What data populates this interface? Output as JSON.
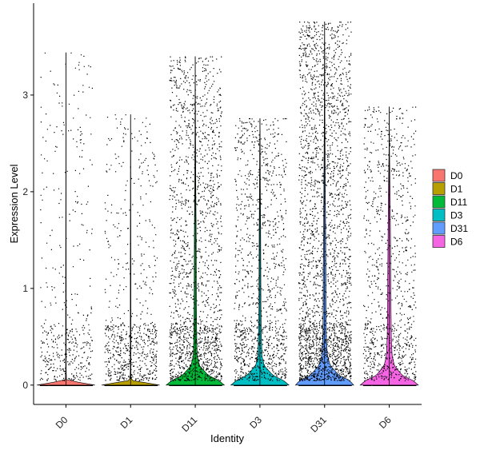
{
  "chart_data": {
    "type": "violin",
    "xlabel": "Identity",
    "ylabel": "Expression Level",
    "ylim": [
      -0.2,
      3.95
    ],
    "yticks": [
      0,
      1,
      2,
      3
    ],
    "grid": false,
    "legend_position": "right",
    "point_color": "#000000",
    "categories": [
      "D0",
      "D1",
      "D11",
      "D3",
      "D31",
      "D6"
    ],
    "colors": [
      "#F8766D",
      "#B79F00",
      "#00BA38",
      "#00BFC4",
      "#619CFF",
      "#F564E3"
    ],
    "series": [
      {
        "name": "D0",
        "max": 3.44,
        "n_points": 700,
        "zero_share": 0.9,
        "density_y": [
          0.0,
          0.05,
          0.15,
          0.3,
          0.5,
          1.0,
          2.0,
          3.44
        ],
        "density_w": [
          1.0,
          0.02,
          0.01,
          0.01,
          0.01,
          0.01,
          0.005,
          0.0
        ]
      },
      {
        "name": "D1",
        "max": 2.8,
        "n_points": 1100,
        "zero_share": 0.9,
        "density_y": [
          0.0,
          0.05,
          0.15,
          0.3,
          0.5,
          1.0,
          2.0,
          2.8
        ],
        "density_w": [
          1.0,
          0.02,
          0.01,
          0.01,
          0.01,
          0.01,
          0.005,
          0.0
        ]
      },
      {
        "name": "D11",
        "max": 3.4,
        "n_points": 2200,
        "zero_share": 0.5,
        "density_y": [
          0.0,
          0.05,
          0.1,
          0.2,
          0.3,
          0.5,
          0.8,
          1.2,
          1.6,
          2.0,
          2.6,
          3.4
        ],
        "density_w": [
          1.0,
          0.8,
          0.45,
          0.15,
          0.07,
          0.05,
          0.04,
          0.035,
          0.03,
          0.02,
          0.01,
          0.0
        ]
      },
      {
        "name": "D3",
        "max": 2.76,
        "n_points": 1500,
        "zero_share": 0.5,
        "density_y": [
          0.0,
          0.05,
          0.1,
          0.2,
          0.3,
          0.5,
          0.8,
          1.2,
          1.6,
          2.0,
          2.4,
          2.76
        ],
        "density_w": [
          1.0,
          0.8,
          0.45,
          0.15,
          0.07,
          0.05,
          0.035,
          0.03,
          0.025,
          0.015,
          0.01,
          0.0
        ]
      },
      {
        "name": "D31",
        "max": 3.76,
        "n_points": 4200,
        "zero_share": 0.45,
        "density_y": [
          0.0,
          0.05,
          0.1,
          0.2,
          0.3,
          0.5,
          0.8,
          1.2,
          1.6,
          2.0,
          2.8,
          3.76
        ],
        "density_w": [
          1.0,
          0.85,
          0.5,
          0.2,
          0.1,
          0.06,
          0.05,
          0.045,
          0.035,
          0.025,
          0.01,
          0.0
        ]
      },
      {
        "name": "D6",
        "max": 2.88,
        "n_points": 1200,
        "zero_share": 0.5,
        "density_y": [
          0.0,
          0.05,
          0.1,
          0.2,
          0.3,
          0.5,
          0.8,
          1.2,
          1.6,
          2.0,
          2.4,
          2.88
        ],
        "density_w": [
          1.0,
          0.8,
          0.45,
          0.18,
          0.1,
          0.07,
          0.06,
          0.05,
          0.04,
          0.03,
          0.01,
          0.0
        ]
      }
    ]
  }
}
